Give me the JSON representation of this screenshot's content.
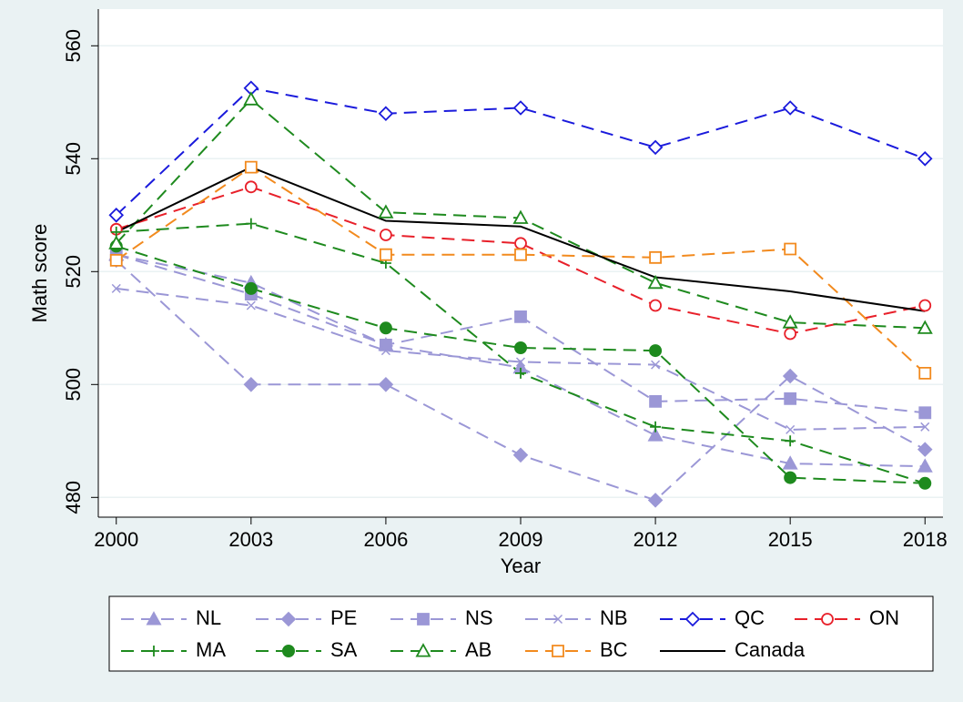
{
  "chart_data": {
    "type": "line",
    "x_label": "Year",
    "y_label": "Math score",
    "x": [
      2000,
      2003,
      2006,
      2009,
      2012,
      2015,
      2018
    ],
    "xlim": [
      1999.6,
      2018.4
    ],
    "xticks": [
      2000,
      2003,
      2006,
      2009,
      2012,
      2015,
      2018
    ],
    "ylim": [
      476.5,
      566.5
    ],
    "yticks": [
      480,
      500,
      520,
      540,
      560
    ],
    "grid": true,
    "legend_position": "bottom",
    "series": [
      {
        "name": "NL",
        "color": "#9b97d6",
        "marker": "triangle-filled",
        "dashed": true,
        "values": [
          523,
          518,
          507,
          503,
          491,
          486,
          485.5
        ]
      },
      {
        "name": "PE",
        "color": "#9b97d6",
        "marker": "diamond-filled",
        "dashed": true,
        "values": [
          522,
          500,
          500,
          487.5,
          479.5,
          501.5,
          488.5
        ]
      },
      {
        "name": "NS",
        "color": "#9b97d6",
        "marker": "square-filled",
        "dashed": true,
        "values": [
          523,
          516,
          507,
          512,
          497,
          497.5,
          495
        ]
      },
      {
        "name": "NB",
        "color": "#9b97d6",
        "marker": "x",
        "dashed": true,
        "values": [
          517,
          514,
          506,
          504,
          503.5,
          492,
          492.5
        ]
      },
      {
        "name": "QC",
        "color": "#1a1adc",
        "marker": "diamond-open",
        "dashed": true,
        "values": [
          530,
          552.5,
          548,
          549,
          542,
          549,
          540
        ]
      },
      {
        "name": "ON",
        "color": "#e8202a",
        "marker": "circle-open",
        "dashed": true,
        "values": [
          527.5,
          535,
          526.5,
          525,
          514,
          509,
          514
        ]
      },
      {
        "name": "MA",
        "color": "#1e8a1e",
        "marker": "plus",
        "dashed": true,
        "values": [
          527,
          528.5,
          521.5,
          502,
          492.5,
          490,
          482.5
        ]
      },
      {
        "name": "SA",
        "color": "#1e8a1e",
        "marker": "circle-filled",
        "dashed": true,
        "values": [
          524.5,
          517,
          510,
          506.5,
          506,
          483.5,
          482.5
        ]
      },
      {
        "name": "AB",
        "color": "#1e8a1e",
        "marker": "triangle-open",
        "dashed": true,
        "values": [
          525,
          550.5,
          530.5,
          529.5,
          518,
          511,
          510
        ]
      },
      {
        "name": "BC",
        "color": "#f28a1e",
        "marker": "square-open",
        "dashed": true,
        "values": [
          522,
          538.5,
          523,
          523,
          522.5,
          524,
          502
        ]
      },
      {
        "name": "Canada",
        "color": "#000000",
        "marker": "none",
        "dashed": false,
        "values": [
          527,
          538.5,
          529,
          528,
          519,
          516.5,
          513
        ]
      }
    ]
  }
}
